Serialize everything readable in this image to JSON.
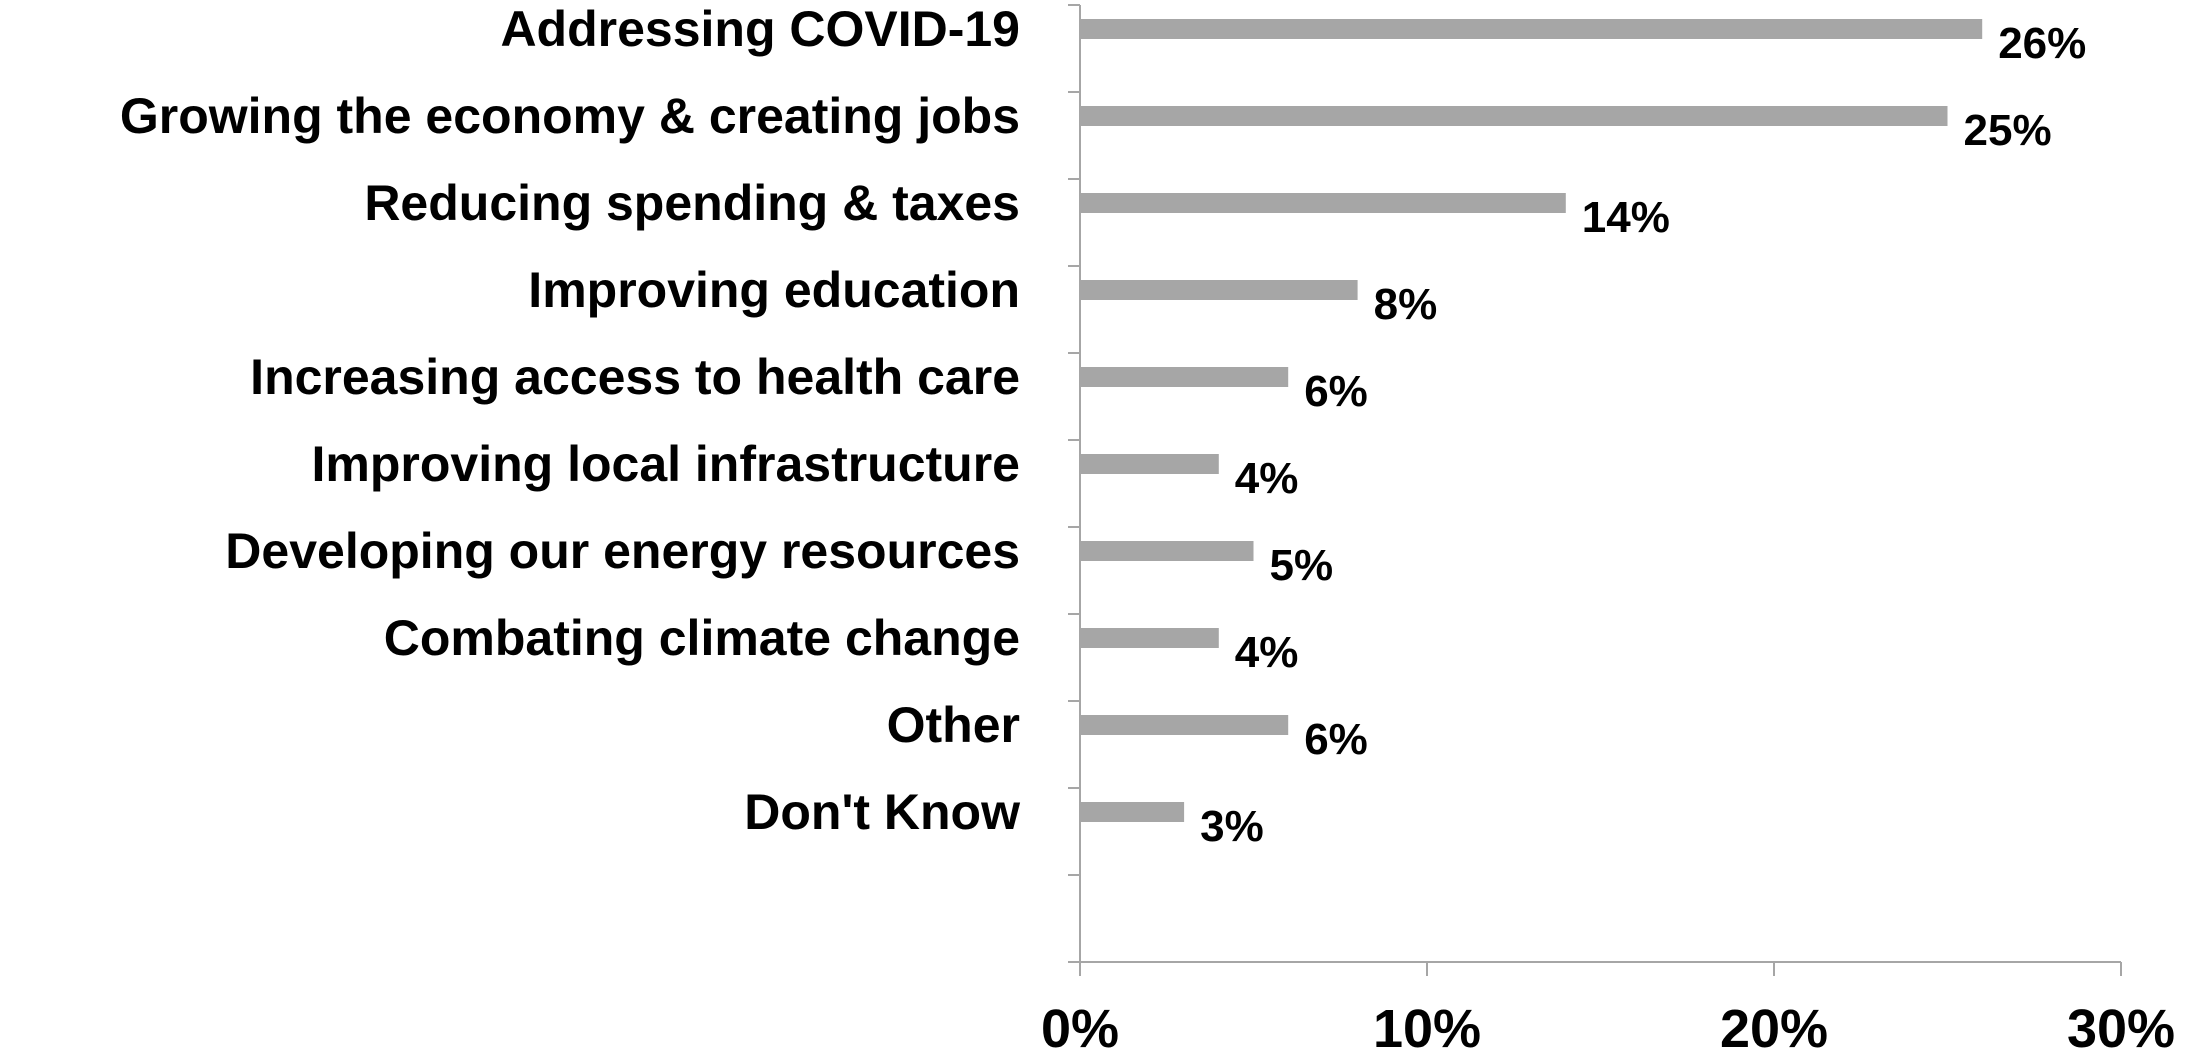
{
  "chart_data": {
    "type": "bar",
    "orientation": "horizontal",
    "categories": [
      "Addressing COVID-19",
      "Growing the economy & creating jobs",
      "Reducing spending & taxes",
      "Improving education",
      "Increasing access to health care",
      "Improving local infrastructure",
      "Developing our energy resources",
      "Combating climate change",
      "Other",
      "Don't Know"
    ],
    "values": [
      26,
      25,
      14,
      8,
      6,
      4,
      5,
      4,
      6,
      3
    ],
    "value_labels": [
      "26%",
      "25%",
      "14%",
      "8%",
      "6%",
      "4%",
      "5%",
      "4%",
      "6%",
      "3%"
    ],
    "xlim": [
      0,
      30
    ],
    "x_ticks": [
      0,
      10,
      20,
      30
    ],
    "x_tick_labels": [
      "0%",
      "10%",
      "20%",
      "30%"
    ],
    "bar_color": "#a6a6a6",
    "axis_color": "#a6a6a6",
    "grid": false,
    "legend": "none"
  }
}
